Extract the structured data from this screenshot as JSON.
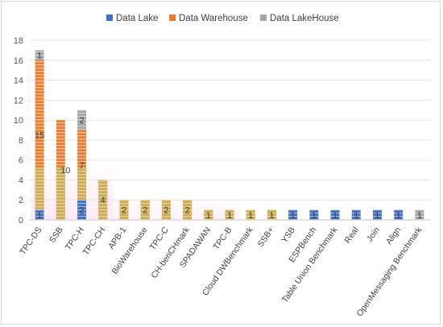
{
  "chart_data": {
    "type": "bar",
    "stacked": true,
    "categories": [
      "TPC-DS",
      "SSB",
      "TPC-H",
      "TPC-CH",
      "APB-1",
      "BioWarehouse",
      "TPC-C",
      "CH-benCHmark",
      "SPADAWAN",
      "TPC-B",
      "Cloud DWBenchmark",
      "SSB+",
      "YSB",
      "ESPBench",
      "Table Union Benchmark",
      "Real",
      "Join",
      "Align",
      "OpenMessaging Benchmark"
    ],
    "series": [
      {
        "name": "Data Lake",
        "color": "#4472c4",
        "values": [
          1,
          0,
          2,
          0,
          0,
          0,
          0,
          0,
          0,
          0,
          0,
          0,
          1,
          1,
          1,
          1,
          1,
          1,
          0
        ]
      },
      {
        "name": "Data Warehouse",
        "color": "#ed7d31",
        "values": [
          15,
          10,
          7,
          4,
          2,
          2,
          2,
          2,
          1,
          1,
          1,
          1,
          0,
          0,
          0,
          0,
          0,
          0,
          0
        ]
      },
      {
        "name": "Data LakeHouse",
        "color": "#a5a5a5",
        "values": [
          1,
          0,
          2,
          0,
          0,
          0,
          0,
          0,
          0,
          0,
          0,
          0,
          0,
          0,
          0,
          0,
          0,
          0,
          1
        ]
      }
    ],
    "ylim": [
      0,
      18
    ],
    "yticks": [
      0,
      2,
      4,
      6,
      8,
      10,
      12,
      14,
      16,
      18
    ],
    "grid": true,
    "legend": "top"
  }
}
